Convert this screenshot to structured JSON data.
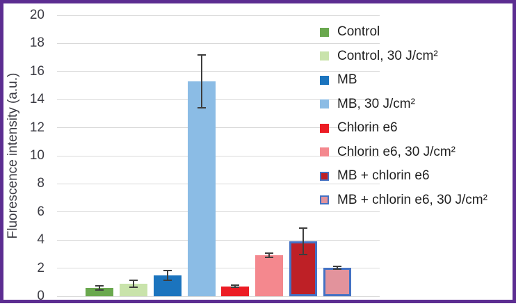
{
  "frame": {
    "border_color": "#5C2D91",
    "background": "#FFFFFF"
  },
  "chart_data": {
    "type": "bar",
    "title": "",
    "xlabel": "",
    "ylabel": "Fluorescence intensity (a.u.)",
    "ylim": [
      0,
      20
    ],
    "yticks": [
      0,
      2,
      4,
      6,
      8,
      10,
      12,
      14,
      16,
      18,
      20
    ],
    "grid": true,
    "legend_position": "right-overlay",
    "categories": [
      "Control",
      "Control, 30 J/cm²",
      "MB",
      "MB, 30 J/cm²",
      "Chlorin e6",
      "Chlorin e6, 30 J/cm²",
      "MB + chlorin e6",
      "MB + chlorin e6, 30 J/cm²"
    ],
    "bars": [
      {
        "label": "Control",
        "value": 0.6,
        "error": 0.15,
        "fill": "#6AA84E",
        "border": ""
      },
      {
        "label": "Control, 30 J/cm²",
        "value": 0.9,
        "error": 0.25,
        "fill": "#C9E3AB",
        "border": ""
      },
      {
        "label": "MB",
        "value": 1.5,
        "error": 0.35,
        "fill": "#1B74BE",
        "border": ""
      },
      {
        "label": "MB, 30 J/cm²",
        "value": 15.3,
        "error": 1.9,
        "fill": "#8BBCE5",
        "border": ""
      },
      {
        "label": "Chlorin e6",
        "value": 0.7,
        "error": 0.08,
        "fill": "#EC1C24",
        "border": ""
      },
      {
        "label": "Chlorin e6, 30 J/cm²",
        "value": 2.9,
        "error": 0.15,
        "fill": "#F4888E",
        "border": ""
      },
      {
        "label": "MB + chlorin e6",
        "value": 3.9,
        "error": 0.95,
        "fill": "#BE2026",
        "border": "#4472C4"
      },
      {
        "label": "MB + chlorin e6, 30 J/cm²",
        "value": 2.05,
        "error": 0.1,
        "fill": "#E2939C",
        "border": "#4472C4"
      }
    ],
    "style": {
      "gridline_color": "#D9D9D9",
      "tick_text_color": "#3C3C44",
      "legend_text_color": "#1F1F1F",
      "error_bar_color": "#3D3D3D"
    }
  }
}
